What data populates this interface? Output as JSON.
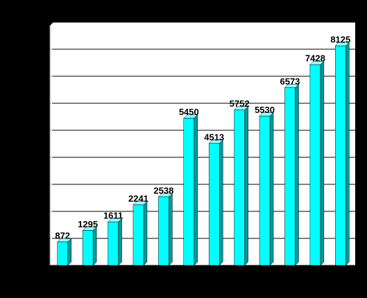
{
  "chart_data": {
    "type": "bar",
    "values": [
      872,
      1295,
      1611,
      2241,
      2538,
      5450,
      4513,
      5752,
      5530,
      6573,
      7428,
      8125
    ],
    "color": "#00ffff",
    "ylim": [
      0,
      9000
    ],
    "yticks": [
      0,
      1000,
      2000,
      3000,
      4000,
      5000,
      6000,
      7000,
      8000,
      9000
    ],
    "grid": true
  }
}
